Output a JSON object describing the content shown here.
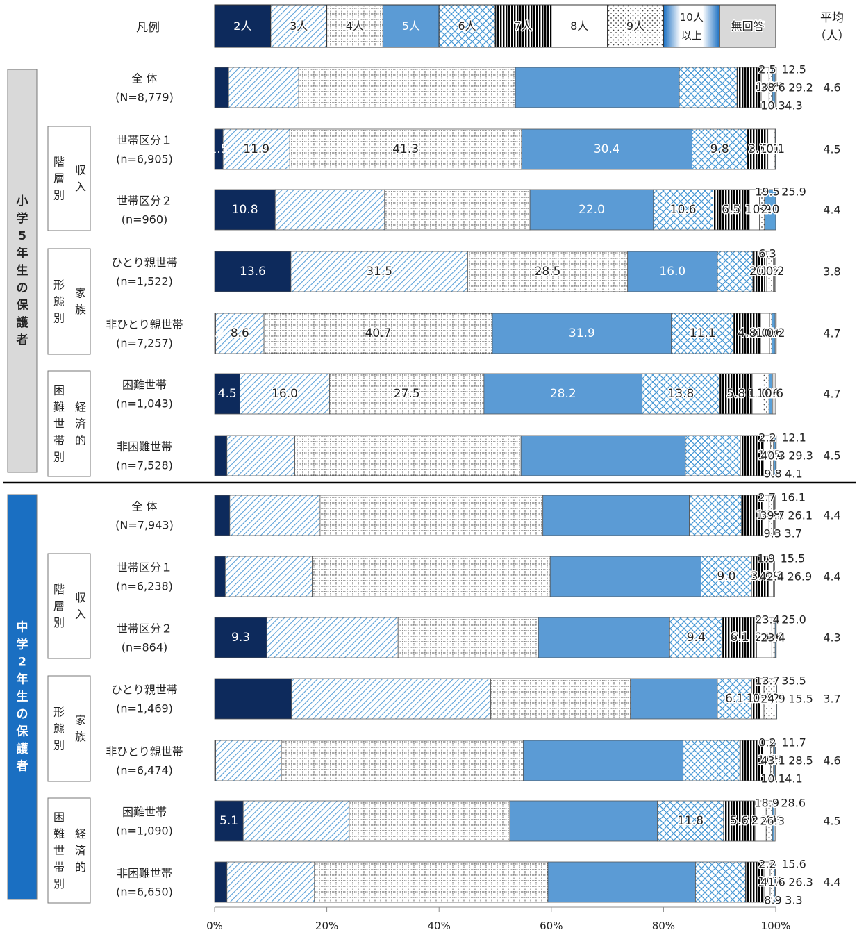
{
  "chart_data": {
    "type": "bar",
    "orientation": "horizontal",
    "stacked": true,
    "xlim": [
      0,
      100
    ],
    "x_ticks": [
      "0%",
      "20%",
      "40%",
      "60%",
      "80%",
      "100%"
    ],
    "legend_title": "凡例",
    "legend": [
      {
        "label": "2人",
        "pattern": "solid-navy"
      },
      {
        "label": "3人",
        "pattern": "diagonal"
      },
      {
        "label": "4人",
        "pattern": "grid"
      },
      {
        "label": "5人",
        "pattern": "solid-blue"
      },
      {
        "label": "6人",
        "pattern": "diamond"
      },
      {
        "label": "7人",
        "pattern": "vertical"
      },
      {
        "label": "8人",
        "pattern": "white"
      },
      {
        "label": "9人",
        "pattern": "dots"
      },
      {
        "label": "10人",
        "label2": "以上",
        "pattern": "blue-frame"
      },
      {
        "label": "無回答",
        "pattern": "gray"
      }
    ],
    "avg_header": [
      "平均",
      "（人）"
    ],
    "colors": {
      "navy": "#0d2a5c",
      "blue": "#5b9bd5",
      "light_blue": "#5aa0d8",
      "gray_fill": "#d9d9d9",
      "group_blue": "#1a6fc2",
      "group_gray": "#d9d9d9"
    },
    "sections": [
      {
        "name_chars": [
          "小",
          "学",
          "5",
          "年",
          "生",
          "の",
          "保",
          "護",
          "者"
        ],
        "subgroups": [
          {
            "outer": [
              "階",
              "層",
              "別"
            ],
            "inner": [
              "収",
              "入"
            ],
            "rows": [
              1,
              2
            ]
          },
          {
            "outer": [
              "形",
              "態",
              "別"
            ],
            "inner": [
              "家",
              "族"
            ],
            "rows": [
              3,
              4
            ]
          },
          {
            "outer": [
              "困",
              "難",
              "世",
              "帯",
              "別"
            ],
            "inner": [
              "経",
              "済",
              "的"
            ],
            "rows": [
              5,
              6
            ]
          }
        ],
        "rows": [
          {
            "label": "全 体",
            "n": "(N=8,779)",
            "values": [
              2.5,
              12.5,
              38.6,
              29.2,
              10.3,
              4.3,
              1.4,
              0.6,
              0.5,
              0.2
            ],
            "avg": "4.6"
          },
          {
            "label": "世帯区分１",
            "n": "(n=6,905)",
            "values": [
              1.5,
              11.9,
              41.3,
              30.4,
              9.8,
              3.7,
              1.1,
              0.2,
              0.1,
              0.0
            ],
            "avg": "4.5"
          },
          {
            "label": "世帯区分２",
            "n": "(n=960)",
            "values": [
              10.8,
              19.5,
              25.9,
              22.0,
              10.6,
              6.5,
              1.8,
              0.9,
              2.0,
              0.0
            ],
            "avg": "4.4"
          },
          {
            "label": "ひとり親世帯",
            "n": "(n=1,522)",
            "values": [
              13.6,
              31.5,
              28.5,
              16.0,
              6.3,
              2.1,
              0.4,
              1.2,
              0.2,
              0.2
            ],
            "avg": "3.8"
          },
          {
            "label": "非ひとり親世帯",
            "n": "(n=7,257)",
            "values": [
              0.2,
              8.6,
              40.7,
              31.9,
              11.1,
              4.8,
              1.6,
              0.4,
              0.6,
              0.2
            ],
            "avg": "4.7"
          },
          {
            "label": "困難世帯",
            "n": "(n=1,043)",
            "values": [
              4.5,
              16.0,
              27.5,
              28.2,
              13.8,
              5.8,
              1.9,
              1.1,
              0.6,
              0.6
            ],
            "avg": "4.7"
          },
          {
            "label": "非困難世帯",
            "n": "(n=7,528)",
            "values": [
              2.2,
              12.1,
              40.3,
              29.3,
              9.8,
              4.1,
              1.3,
              0.5,
              0.4,
              0.1
            ],
            "avg": "4.5"
          }
        ]
      },
      {
        "name_chars": [
          "中",
          "学",
          "2",
          "年",
          "生",
          "の",
          "保",
          "護",
          "者"
        ],
        "subgroups": [
          {
            "outer": [
              "階",
              "層",
              "別"
            ],
            "inner": [
              "収",
              "入"
            ],
            "rows": [
              1,
              2
            ]
          },
          {
            "outer": [
              "形",
              "態",
              "別"
            ],
            "inner": [
              "家",
              "族"
            ],
            "rows": [
              3,
              4
            ]
          },
          {
            "outer": [
              "困",
              "難",
              "世",
              "帯",
              "別"
            ],
            "inner": [
              "経",
              "済",
              "的"
            ],
            "rows": [
              5,
              6
            ]
          }
        ],
        "rows": [
          {
            "label": "全 体",
            "n": "(N=7,943)",
            "values": [
              2.7,
              16.1,
              39.7,
              26.1,
              9.3,
              3.7,
              1.2,
              0.8,
              0.2,
              0.1
            ],
            "avg": "4.4"
          },
          {
            "label": "世帯区分１",
            "n": "(n=6,238)",
            "values": [
              1.9,
              15.5,
              42.4,
              26.9,
              9.0,
              3.0,
              0.9,
              0.1,
              0.1,
              0.0
            ],
            "avg": "4.4"
          },
          {
            "label": "世帯区分２",
            "n": "(n=864)",
            "values": [
              9.3,
              23.4,
              25.0,
              23.4,
              9.4,
              6.1,
              2.7,
              0.6,
              0.2,
              0.0
            ],
            "avg": "4.3"
          },
          {
            "label": "ひとり親世帯",
            "n": "(n=1,469)",
            "values": [
              13.7,
              35.5,
              24.9,
              15.5,
              6.1,
              1.5,
              0.7,
              2.2,
              0.1,
              0.0
            ],
            "avg": "3.7"
          },
          {
            "label": "非ひとり親世帯",
            "n": "(n=6,474)",
            "values": [
              0.2,
              11.7,
              43.1,
              28.5,
              10.1,
              4.1,
              1.4,
              0.5,
              0.3,
              0.1
            ],
            "avg": "4.6"
          },
          {
            "label": "困難世帯",
            "n": "(n=1,090)",
            "values": [
              5.1,
              18.9,
              28.6,
              26.3,
              11.8,
              5.6,
              2.0,
              1.1,
              0.3,
              0.2
            ],
            "avg": "4.5"
          },
          {
            "label": "非困難世帯",
            "n": "(n=6,650)",
            "values": [
              2.2,
              15.6,
              41.6,
              26.3,
              8.9,
              3.3,
              1.1,
              0.7,
              0.2,
              0.1
            ],
            "avg": "4.4"
          }
        ]
      }
    ],
    "outside_labels": [
      [
        [
          0,
          1,
          2,
          3,
          4,
          5
        ],
        [],
        [
          1,
          2
        ],
        [
          4
        ],
        [],
        [],
        [
          0,
          1,
          2,
          3,
          4,
          5
        ]
      ],
      [
        [
          0,
          1,
          2,
          3,
          4,
          5
        ],
        [
          0,
          1,
          2,
          3
        ],
        [
          1,
          2,
          3
        ],
        [
          0,
          1,
          2,
          3
        ],
        [
          0,
          1,
          2,
          3,
          4,
          5
        ],
        [
          1,
          2,
          3
        ],
        [
          0,
          1,
          2,
          3,
          4,
          5
        ]
      ]
    ]
  }
}
